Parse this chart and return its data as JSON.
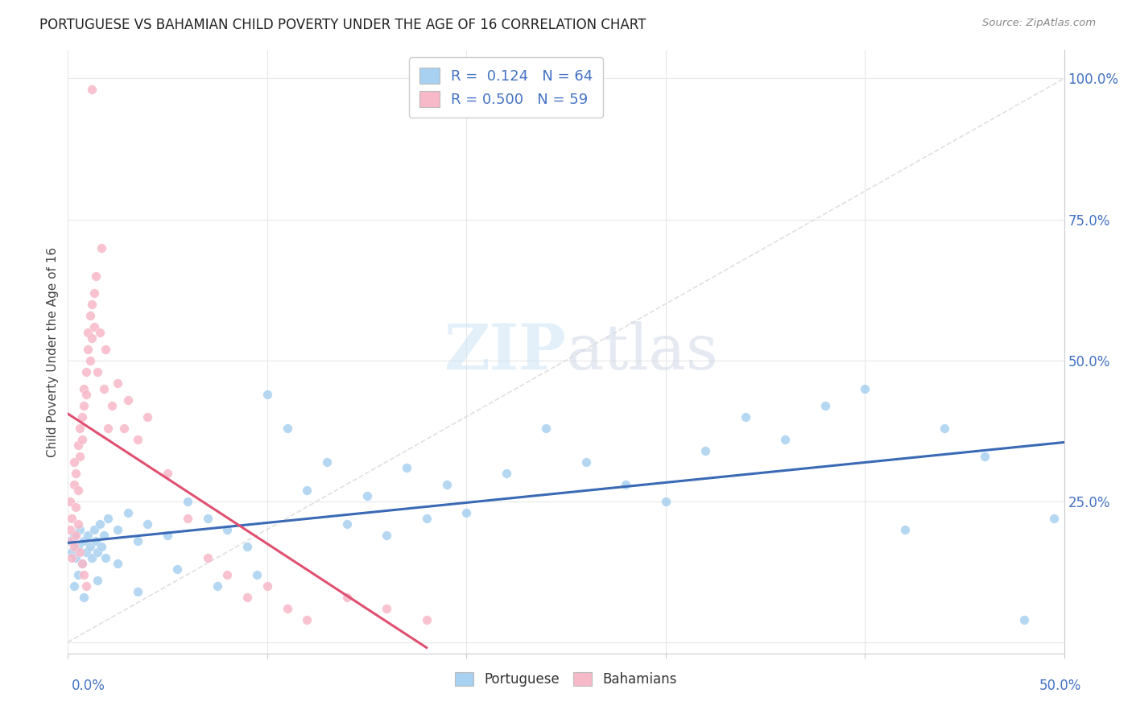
{
  "title": "PORTUGUESE VS BAHAMIAN CHILD POVERTY UNDER THE AGE OF 16 CORRELATION CHART",
  "source": "Source: ZipAtlas.com",
  "ylabel": "Child Poverty Under the Age of 16",
  "xlim": [
    0.0,
    0.5
  ],
  "ylim": [
    -0.02,
    1.05
  ],
  "watermark_zip": "ZIP",
  "watermark_atlas": "atlas",
  "legend_portuguese_R": "0.124",
  "legend_portuguese_N": "64",
  "legend_bahamian_R": "0.500",
  "legend_bahamian_N": "59",
  "blue_scatter_color": "#a8d0f0",
  "pink_scatter_color": "#f7b8c8",
  "blue_line_color": "#3a6ab5",
  "pink_line_color": "#e05070",
  "diag_line_color": "#dddddd",
  "axis_label_color": "#4472c4",
  "legend_text_color": "#222222",
  "legend_RN_color": "#4472c4",
  "grid_color": "#e8e8e8",
  "background_color": "#ffffff",
  "portuguese_x": [
    0.001,
    0.002,
    0.003,
    0.004,
    0.005,
    0.006,
    0.007,
    0.008,
    0.009,
    0.01,
    0.011,
    0.012,
    0.013,
    0.014,
    0.015,
    0.016,
    0.017,
    0.018,
    0.019,
    0.02,
    0.025,
    0.03,
    0.035,
    0.04,
    0.05,
    0.06,
    0.07,
    0.08,
    0.09,
    0.1,
    0.11,
    0.12,
    0.13,
    0.14,
    0.15,
    0.16,
    0.17,
    0.18,
    0.19,
    0.2,
    0.22,
    0.24,
    0.26,
    0.28,
    0.3,
    0.32,
    0.34,
    0.36,
    0.38,
    0.4,
    0.42,
    0.44,
    0.46,
    0.48,
    0.495,
    0.003,
    0.005,
    0.008,
    0.015,
    0.025,
    0.035,
    0.055,
    0.075,
    0.095
  ],
  "portuguese_y": [
    0.18,
    0.16,
    0.19,
    0.15,
    0.17,
    0.2,
    0.14,
    0.18,
    0.16,
    0.19,
    0.17,
    0.15,
    0.2,
    0.18,
    0.16,
    0.21,
    0.17,
    0.19,
    0.15,
    0.22,
    0.2,
    0.23,
    0.18,
    0.21,
    0.19,
    0.25,
    0.22,
    0.2,
    0.17,
    0.44,
    0.38,
    0.27,
    0.32,
    0.21,
    0.26,
    0.19,
    0.31,
    0.22,
    0.28,
    0.23,
    0.3,
    0.38,
    0.32,
    0.28,
    0.25,
    0.34,
    0.4,
    0.36,
    0.42,
    0.45,
    0.2,
    0.38,
    0.33,
    0.04,
    0.22,
    0.1,
    0.12,
    0.08,
    0.11,
    0.14,
    0.09,
    0.13,
    0.1,
    0.12
  ],
  "bahamian_x": [
    0.001,
    0.001,
    0.002,
    0.002,
    0.003,
    0.003,
    0.004,
    0.004,
    0.005,
    0.005,
    0.006,
    0.006,
    0.007,
    0.007,
    0.008,
    0.008,
    0.009,
    0.009,
    0.01,
    0.01,
    0.011,
    0.011,
    0.012,
    0.012,
    0.013,
    0.013,
    0.014,
    0.015,
    0.016,
    0.017,
    0.018,
    0.019,
    0.02,
    0.022,
    0.025,
    0.028,
    0.03,
    0.035,
    0.04,
    0.05,
    0.06,
    0.07,
    0.08,
    0.09,
    0.1,
    0.11,
    0.12,
    0.14,
    0.16,
    0.18,
    0.002,
    0.003,
    0.004,
    0.005,
    0.006,
    0.007,
    0.008,
    0.009,
    0.012
  ],
  "bahamian_y": [
    0.2,
    0.25,
    0.22,
    0.18,
    0.28,
    0.32,
    0.24,
    0.3,
    0.35,
    0.27,
    0.38,
    0.33,
    0.4,
    0.36,
    0.45,
    0.42,
    0.48,
    0.44,
    0.52,
    0.55,
    0.58,
    0.5,
    0.6,
    0.54,
    0.62,
    0.56,
    0.65,
    0.48,
    0.55,
    0.7,
    0.45,
    0.52,
    0.38,
    0.42,
    0.46,
    0.38,
    0.43,
    0.36,
    0.4,
    0.3,
    0.22,
    0.15,
    0.12,
    0.08,
    0.1,
    0.06,
    0.04,
    0.08,
    0.06,
    0.04,
    0.15,
    0.17,
    0.19,
    0.21,
    0.16,
    0.14,
    0.12,
    0.1,
    0.98
  ]
}
